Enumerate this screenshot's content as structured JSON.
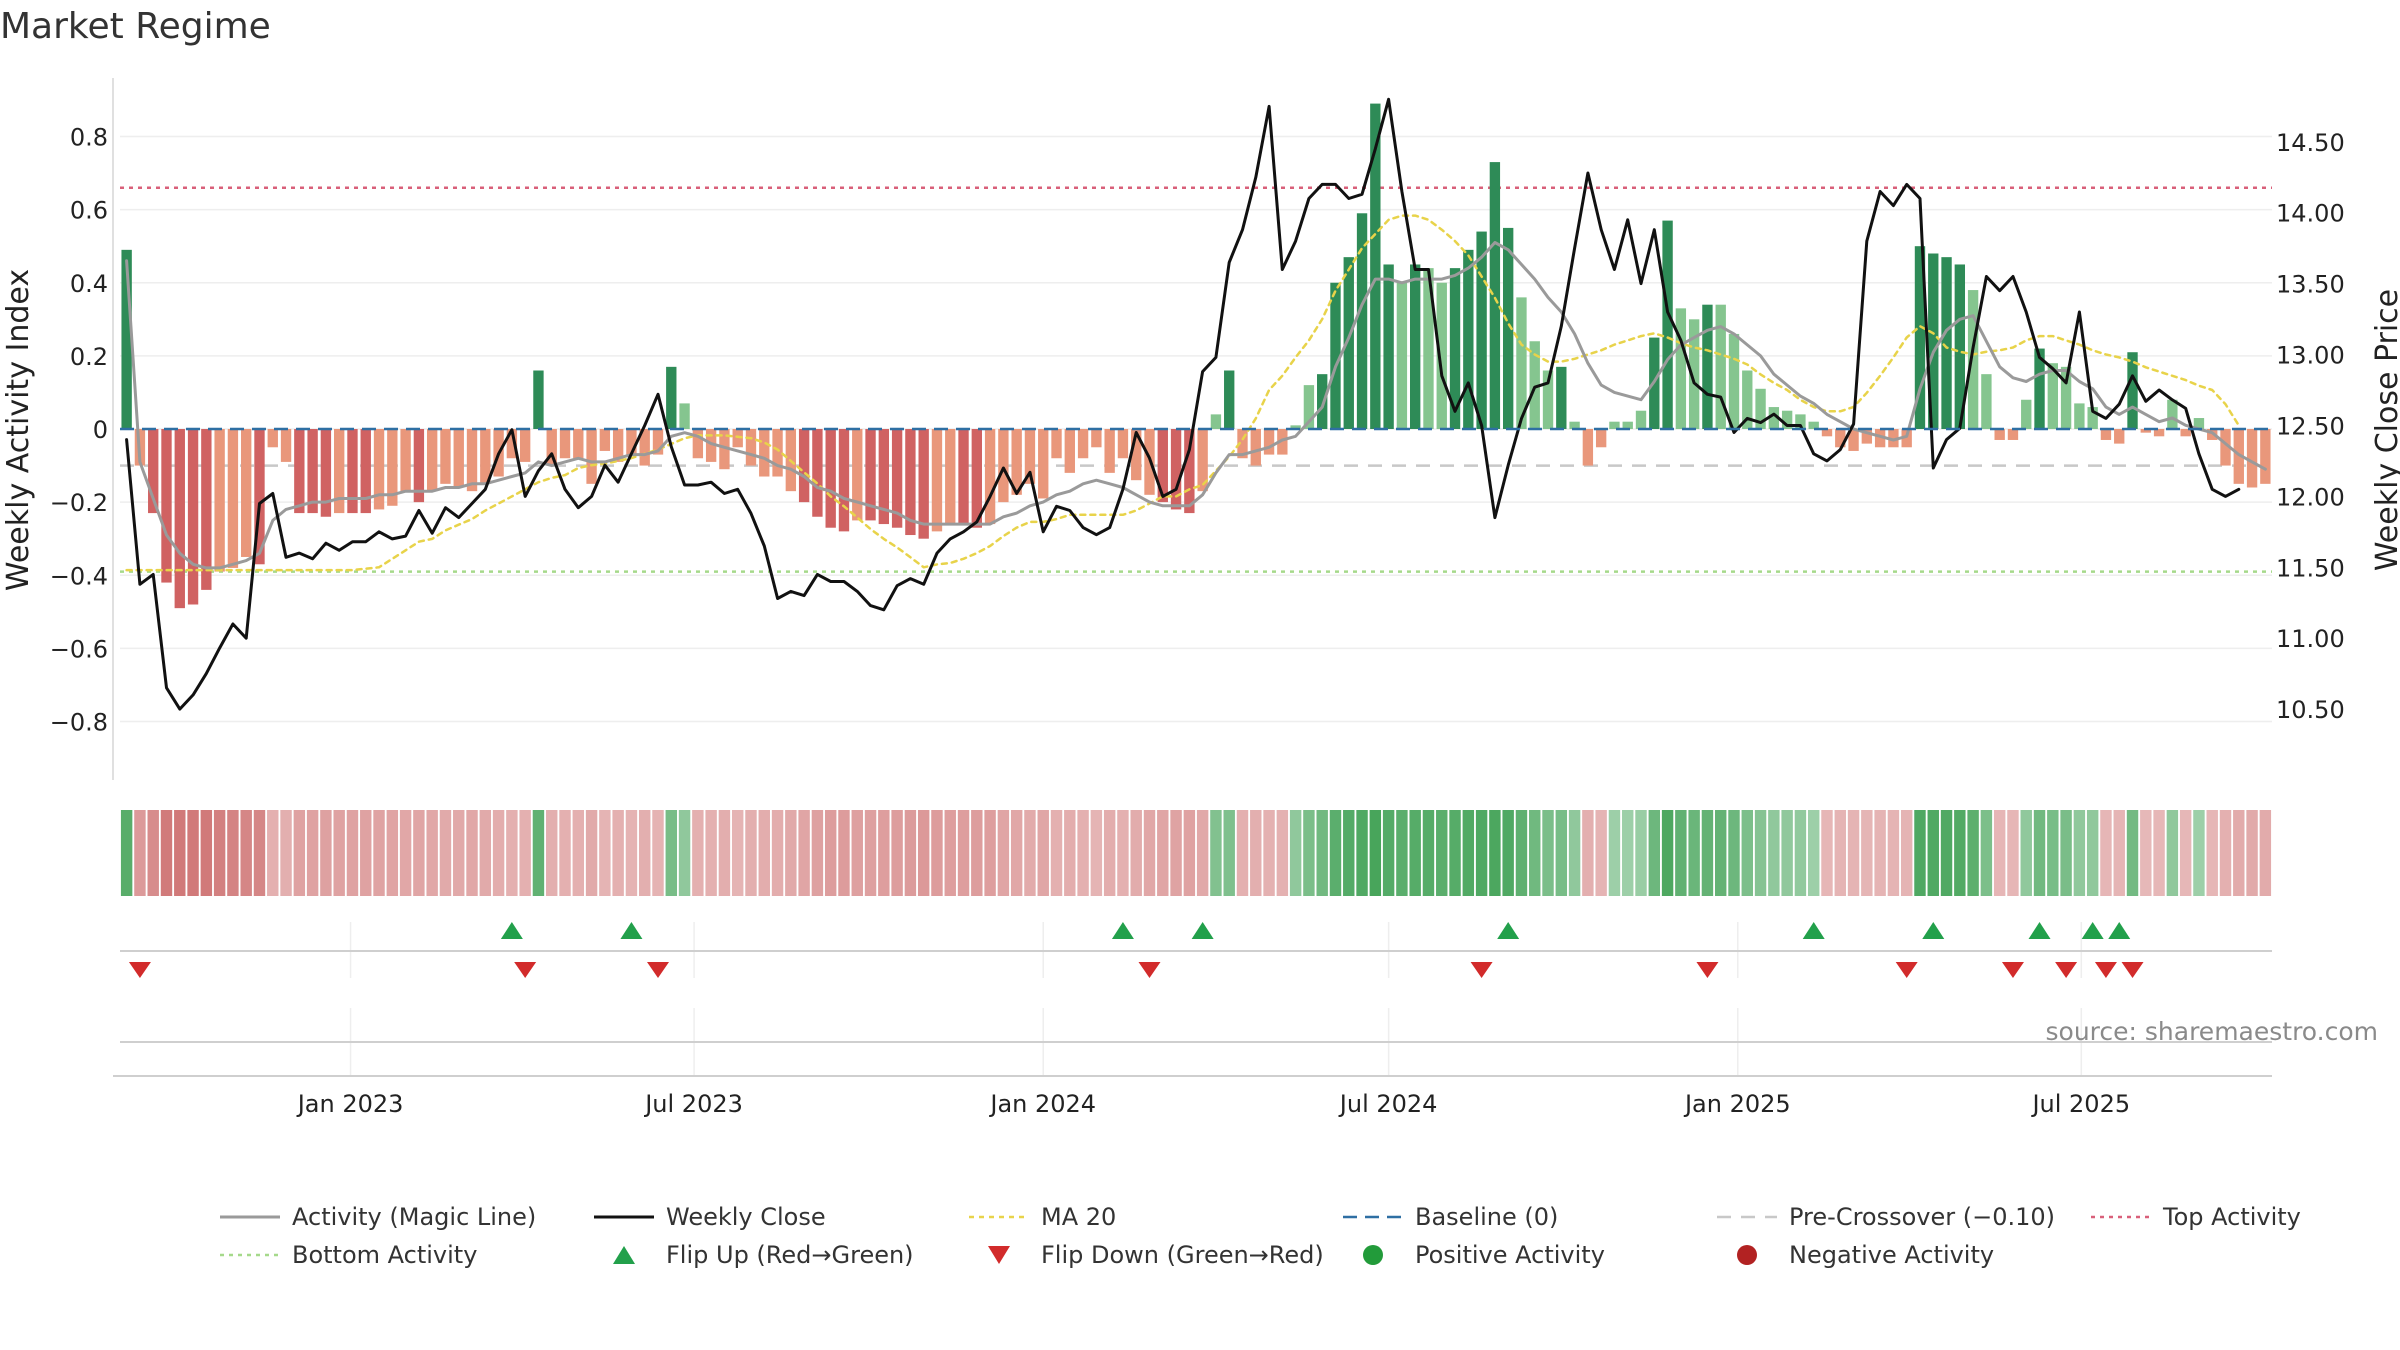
{
  "source_note": "source: sharemaestro.com",
  "colors": {
    "pos_strong": "#2e8b57",
    "pos_light": "#85c58f",
    "neg_strong": "#d06262",
    "neg_light": "#e9977b",
    "activity_line": "#9a9a9a",
    "close_line": "#111111",
    "ma20": "#e8d34a",
    "baseline": "#2e6fa3",
    "pre_crossover": "#c8c8c8",
    "top_activity": "#d9607a",
    "bottom_activity": "#a6d98b",
    "flip_up": "#22a04b",
    "flip_down": "#d22b2b",
    "pos_dot": "#229b3a",
    "neg_dot": "#b22222"
  },
  "chart_data": {
    "type": "bar",
    "title": "Market Regime",
    "ylabel": "Weekly Activity Index",
    "y2label": "Weekly Close Price",
    "ylim": [
      -0.96,
      0.96
    ],
    "y2lim": [
      10.0,
      14.95
    ],
    "yticks": [
      -0.8,
      -0.6,
      -0.4,
      -0.2,
      0,
      0.2,
      0.4,
      0.6,
      0.8
    ],
    "yticklabels": [
      "−0.8",
      "−0.6",
      "−0.4",
      "−0.2",
      "0",
      "0.2",
      "0.4",
      "0.6",
      "0.8"
    ],
    "y2ticks": [
      10.5,
      11.0,
      11.5,
      12.0,
      12.5,
      13.0,
      13.5,
      14.0,
      14.5
    ],
    "y2ticklabels": [
      "10.50",
      "11.00",
      "11.50",
      "12.00",
      "12.50",
      "13.00",
      "13.50",
      "14.00",
      "14.50"
    ],
    "x_start": "2022-09-05",
    "x_step_days": 7,
    "xticks": [
      {
        "date": "2023-01-01",
        "label": "Jan 2023"
      },
      {
        "date": "2023-07-01",
        "label": "Jul 2023"
      },
      {
        "date": "2024-01-01",
        "label": "Jan 2024"
      },
      {
        "date": "2024-07-01",
        "label": "Jul 2024"
      },
      {
        "date": "2025-01-01",
        "label": "Jan 2025"
      },
      {
        "date": "2025-07-01",
        "label": "Jul 2025"
      }
    ],
    "top_activity": 0.66,
    "bottom_activity": -0.39,
    "pre_crossover": -0.1,
    "baseline": 0,
    "series": [
      {
        "name": "Weekly Activity Index",
        "type": "bar",
        "values": [
          0.49,
          -0.1,
          -0.23,
          -0.42,
          -0.49,
          -0.48,
          -0.44,
          -0.39,
          -0.38,
          -0.35,
          -0.37,
          -0.05,
          -0.09,
          -0.23,
          -0.23,
          -0.24,
          -0.23,
          -0.23,
          -0.23,
          -0.22,
          -0.21,
          -0.17,
          -0.2,
          -0.17,
          -0.15,
          -0.16,
          -0.17,
          -0.15,
          -0.13,
          -0.08,
          -0.09,
          0.16,
          -0.1,
          -0.08,
          -0.08,
          -0.15,
          -0.06,
          -0.09,
          -0.07,
          -0.1,
          -0.07,
          0.17,
          0.07,
          -0.08,
          -0.09,
          -0.11,
          -0.05,
          -0.1,
          -0.13,
          -0.13,
          -0.17,
          -0.2,
          -0.24,
          -0.27,
          -0.28,
          -0.25,
          -0.25,
          -0.26,
          -0.27,
          -0.29,
          -0.3,
          -0.28,
          -0.26,
          -0.26,
          -0.27,
          -0.26,
          -0.2,
          -0.18,
          -0.15,
          -0.19,
          -0.08,
          -0.12,
          -0.08,
          -0.05,
          -0.12,
          -0.08,
          -0.14,
          -0.18,
          -0.2,
          -0.22,
          -0.23,
          -0.17,
          0.04,
          0.16,
          -0.08,
          -0.1,
          -0.07,
          -0.07,
          0.01,
          0.12,
          0.15,
          0.4,
          0.47,
          0.59,
          0.89,
          0.45,
          0.4,
          0.45,
          0.44,
          0.4,
          0.44,
          0.49,
          0.54,
          0.73,
          0.55,
          0.36,
          0.24,
          0.16,
          0.17,
          0.02,
          -0.1,
          -0.05,
          0.02,
          0.02,
          0.05,
          0.25,
          0.57,
          0.33,
          0.3,
          0.34,
          0.34,
          0.26,
          0.16,
          0.11,
          0.06,
          0.05,
          0.04,
          0.02,
          -0.02,
          -0.05,
          -0.06,
          -0.04,
          -0.05,
          -0.05,
          -0.05,
          0.5,
          0.48,
          0.47,
          0.45,
          0.38,
          0.15,
          -0.03,
          -0.03,
          0.08,
          0.22,
          0.18,
          0.17,
          0.07,
          0.06,
          -0.03,
          -0.04,
          0.21,
          -0.01,
          -0.02,
          0.08,
          -0.02,
          0.03,
          -0.03,
          -0.1,
          -0.15,
          -0.16,
          -0.15
        ]
      },
      {
        "name": "Activity (Magic Line)",
        "type": "line",
        "values": [
          0.46,
          -0.09,
          -0.19,
          -0.29,
          -0.34,
          -0.37,
          -0.38,
          -0.38,
          -0.37,
          -0.36,
          -0.34,
          -0.25,
          -0.22,
          -0.21,
          -0.2,
          -0.2,
          -0.19,
          -0.19,
          -0.19,
          -0.18,
          -0.18,
          -0.17,
          -0.17,
          -0.17,
          -0.16,
          -0.16,
          -0.15,
          -0.15,
          -0.14,
          -0.13,
          -0.12,
          -0.09,
          -0.1,
          -0.09,
          -0.08,
          -0.09,
          -0.09,
          -0.08,
          -0.07,
          -0.07,
          -0.06,
          -0.02,
          -0.01,
          -0.02,
          -0.04,
          -0.05,
          -0.06,
          -0.07,
          -0.08,
          -0.1,
          -0.11,
          -0.13,
          -0.16,
          -0.17,
          -0.19,
          -0.2,
          -0.21,
          -0.22,
          -0.23,
          -0.25,
          -0.26,
          -0.26,
          -0.26,
          -0.26,
          -0.26,
          -0.26,
          -0.24,
          -0.23,
          -0.21,
          -0.2,
          -0.18,
          -0.17,
          -0.15,
          -0.14,
          -0.15,
          -0.16,
          -0.18,
          -0.2,
          -0.21,
          -0.21,
          -0.21,
          -0.18,
          -0.12,
          -0.07,
          -0.07,
          -0.06,
          -0.05,
          -0.03,
          -0.02,
          0.02,
          0.06,
          0.17,
          0.25,
          0.34,
          0.41,
          0.41,
          0.4,
          0.41,
          0.41,
          0.41,
          0.42,
          0.44,
          0.47,
          0.51,
          0.49,
          0.45,
          0.41,
          0.36,
          0.32,
          0.26,
          0.18,
          0.12,
          0.1,
          0.09,
          0.08,
          0.13,
          0.19,
          0.23,
          0.25,
          0.27,
          0.28,
          0.26,
          0.23,
          0.2,
          0.15,
          0.12,
          0.09,
          0.07,
          0.04,
          0.02,
          0.0,
          -0.01,
          -0.02,
          -0.03,
          -0.02,
          0.11,
          0.21,
          0.27,
          0.3,
          0.31,
          0.24,
          0.17,
          0.14,
          0.13,
          0.15,
          0.16,
          0.16,
          0.13,
          0.11,
          0.06,
          0.04,
          0.06,
          0.04,
          0.02,
          0.03,
          0.01,
          0.0,
          -0.01,
          -0.04,
          -0.07,
          -0.09,
          -0.11
        ]
      },
      {
        "name": "Weekly Close",
        "type": "line",
        "axis": "right",
        "values": [
          12.4,
          11.38,
          11.45,
          10.65,
          10.5,
          10.6,
          10.75,
          10.93,
          11.1,
          11.0,
          11.95,
          12.02,
          11.57,
          11.6,
          11.56,
          11.67,
          11.62,
          11.68,
          11.68,
          11.75,
          11.7,
          11.72,
          11.9,
          11.74,
          11.92,
          11.85,
          11.95,
          12.05,
          12.3,
          12.47,
          12.0,
          12.18,
          12.3,
          12.05,
          11.92,
          12.0,
          12.22,
          12.1,
          12.3,
          12.5,
          12.72,
          12.35,
          12.08,
          12.08,
          12.1,
          12.02,
          12.05,
          11.88,
          11.65,
          11.28,
          11.33,
          11.3,
          11.45,
          11.4,
          11.4,
          11.33,
          11.23,
          11.2,
          11.37,
          11.42,
          11.38,
          11.6,
          11.7,
          11.75,
          11.82,
          12.0,
          12.2,
          12.02,
          12.17,
          11.75,
          11.93,
          11.9,
          11.78,
          11.73,
          11.78,
          12.05,
          12.45,
          12.27,
          12.0,
          12.05,
          12.33,
          12.88,
          12.98,
          13.65,
          13.88,
          14.25,
          14.75,
          13.6,
          13.8,
          14.1,
          14.2,
          14.2,
          14.1,
          14.13,
          14.45,
          14.8,
          14.15,
          13.6,
          13.6,
          12.85,
          12.6,
          12.8,
          12.5,
          11.85,
          12.22,
          12.55,
          12.77,
          12.8,
          13.2,
          13.75,
          14.28,
          13.88,
          13.6,
          13.95,
          13.5,
          13.88,
          13.3,
          13.1,
          12.8,
          12.72,
          12.7,
          12.45,
          12.55,
          12.52,
          12.58,
          12.5,
          12.5,
          12.3,
          12.25,
          12.33,
          12.51,
          13.8,
          14.15,
          14.05,
          14.2,
          14.1,
          12.2,
          12.4,
          12.48,
          13.05,
          13.55,
          13.45,
          13.55,
          13.3,
          12.98,
          12.9,
          12.8,
          13.3,
          12.6,
          12.55,
          12.65,
          12.85,
          12.67,
          12.75,
          12.68,
          12.62,
          12.3,
          12.05,
          12.0,
          12.05
        ]
      },
      {
        "name": "MA 20",
        "type": "line",
        "axis": "right",
        "values": [
          11.48,
          11.48,
          11.48,
          11.48,
          11.48,
          11.48,
          11.48,
          11.48,
          11.48,
          11.48,
          11.48,
          11.48,
          11.48,
          11.48,
          11.48,
          11.48,
          11.48,
          11.48,
          11.49,
          11.5,
          11.56,
          11.62,
          11.68,
          11.7,
          11.76,
          11.8,
          11.84,
          11.9,
          11.95,
          12.0,
          12.05,
          12.1,
          12.13,
          12.15,
          12.2,
          12.22,
          12.23,
          12.25,
          12.27,
          12.3,
          12.33,
          12.37,
          12.41,
          12.43,
          12.43,
          12.43,
          12.42,
          12.41,
          12.38,
          12.33,
          12.25,
          12.17,
          12.09,
          12.0,
          11.93,
          11.85,
          11.77,
          11.7,
          11.64,
          11.57,
          11.5,
          11.52,
          11.53,
          11.56,
          11.6,
          11.65,
          11.72,
          11.78,
          11.82,
          11.82,
          11.84,
          11.87,
          11.87,
          11.87,
          11.87,
          11.87,
          11.9,
          11.95,
          12.0,
          12.0,
          12.05,
          12.08,
          12.18,
          12.28,
          12.4,
          12.55,
          12.75,
          12.85,
          12.98,
          13.1,
          13.25,
          13.45,
          13.6,
          13.75,
          13.85,
          13.95,
          13.98,
          13.98,
          13.95,
          13.88,
          13.8,
          13.7,
          13.55,
          13.4,
          13.22,
          13.07,
          13.0,
          12.95,
          12.95,
          12.97,
          13.0,
          13.03,
          13.07,
          13.1,
          13.13,
          13.15,
          13.12,
          13.08,
          13.05,
          13.03,
          13.0,
          12.97,
          12.93,
          12.86,
          12.8,
          12.75,
          12.68,
          12.63,
          12.6,
          12.6,
          12.63,
          12.73,
          12.85,
          12.98,
          13.12,
          13.2,
          13.15,
          13.05,
          13.02,
          13.0,
          13.02,
          13.03,
          13.05,
          13.1,
          13.13,
          13.13,
          13.1,
          13.07,
          13.03,
          13.0,
          12.98,
          12.95,
          12.91,
          12.88,
          12.85,
          12.82,
          12.78,
          12.75,
          12.65,
          12.5
        ]
      }
    ],
    "regime_strip": [
      0.85,
      -0.55,
      -0.68,
      -0.84,
      -0.85,
      -0.85,
      -0.84,
      -0.78,
      -0.76,
      -0.73,
      -0.73,
      -0.35,
      -0.36,
      -0.48,
      -0.48,
      -0.49,
      -0.48,
      -0.48,
      -0.48,
      -0.47,
      -0.46,
      -0.43,
      -0.45,
      -0.43,
      -0.41,
      -0.42,
      -0.43,
      -0.41,
      -0.38,
      -0.35,
      -0.35,
      0.79,
      -0.36,
      -0.35,
      -0.35,
      -0.41,
      -0.32,
      -0.35,
      -0.33,
      -0.36,
      -0.33,
      0.62,
      0.45,
      -0.35,
      -0.35,
      -0.37,
      -0.32,
      -0.36,
      -0.38,
      -0.38,
      -0.42,
      -0.45,
      -0.49,
      -0.52,
      -0.53,
      -0.5,
      -0.5,
      -0.51,
      -0.52,
      -0.54,
      -0.56,
      -0.53,
      -0.51,
      -0.51,
      -0.52,
      -0.51,
      -0.45,
      -0.43,
      -0.4,
      -0.44,
      -0.35,
      -0.38,
      -0.35,
      -0.32,
      -0.38,
      -0.35,
      -0.39,
      -0.43,
      -0.45,
      -0.47,
      -0.48,
      -0.42,
      0.55,
      0.57,
      -0.35,
      -0.36,
      -0.34,
      -0.34,
      0.45,
      0.6,
      0.67,
      0.83,
      0.88,
      0.91,
      0.97,
      0.88,
      0.84,
      0.87,
      0.87,
      0.84,
      0.87,
      0.9,
      0.91,
      0.94,
      0.91,
      0.8,
      0.68,
      0.6,
      0.62,
      0.45,
      -0.36,
      -0.32,
      0.35,
      0.35,
      0.38,
      0.7,
      0.93,
      0.79,
      0.72,
      0.77,
      0.77,
      0.7,
      0.59,
      0.52,
      0.45,
      0.45,
      0.44,
      0.35,
      -0.3,
      -0.32,
      -0.32,
      -0.31,
      -0.32,
      -0.32,
      -0.32,
      0.92,
      0.91,
      0.91,
      0.9,
      0.82,
      0.59,
      -0.3,
      -0.3,
      0.45,
      0.67,
      0.62,
      0.61,
      0.45,
      0.45,
      -0.3,
      -0.31,
      0.66,
      -0.28,
      -0.29,
      0.45,
      -0.29,
      0.35,
      -0.3,
      -0.35,
      -0.4,
      -0.41,
      -0.4
    ],
    "flip_up_weeks": [
      29,
      38,
      75,
      81,
      104,
      127,
      136,
      144,
      148,
      150
    ],
    "flip_down_weeks": [
      1,
      30,
      40,
      77,
      102,
      119,
      134,
      142,
      146,
      149,
      151
    ],
    "legend": {
      "location": "bottom",
      "entries": [
        {
          "label": "Activity (Magic Line)",
          "marker": "line-solid-gray"
        },
        {
          "label": "Weekly Close",
          "marker": "line-solid-black"
        },
        {
          "label": "MA 20",
          "marker": "line-dotted-yellow"
        },
        {
          "label": "Baseline (0)",
          "marker": "line-dashed-blue"
        },
        {
          "label": "Pre-Crossover (−0.10)",
          "marker": "line-dashed-gray"
        },
        {
          "label": "Top Activity",
          "marker": "line-dotted-pink"
        },
        {
          "label": "Bottom Activity",
          "marker": "line-dotted-green"
        },
        {
          "label": "Flip Up (Red→Green)",
          "marker": "triangle-up-green"
        },
        {
          "label": "Flip Down (Green→Red)",
          "marker": "triangle-down-red"
        },
        {
          "label": "Positive Activity",
          "marker": "circle-green"
        },
        {
          "label": "Negative Activity",
          "marker": "circle-red"
        }
      ]
    }
  }
}
